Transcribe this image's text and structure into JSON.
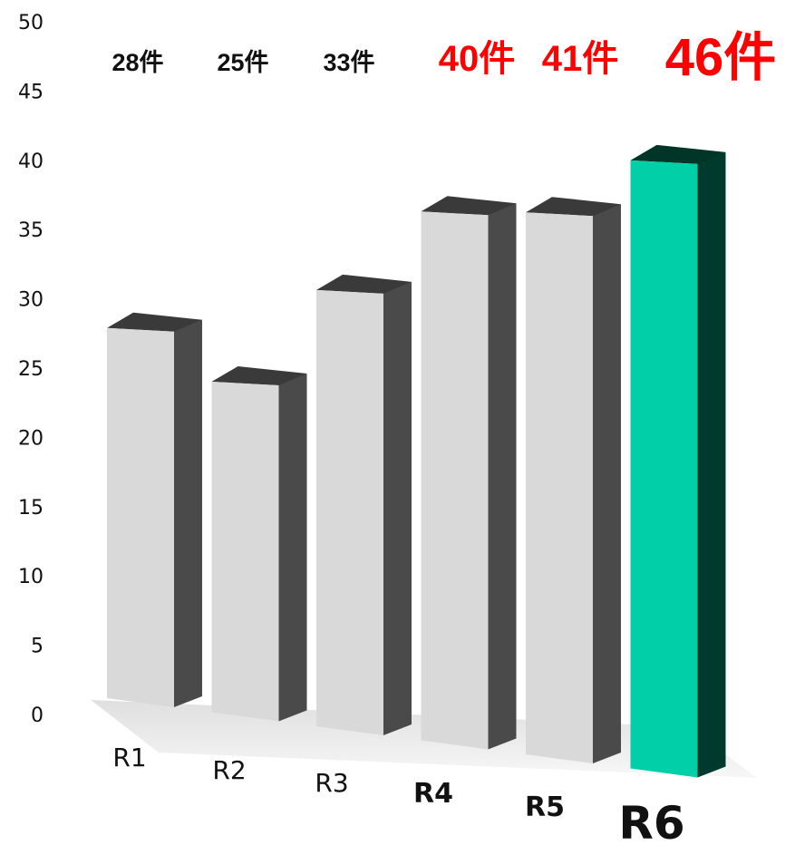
{
  "chart_data": {
    "type": "bar",
    "categories": [
      "R1",
      "R2",
      "R3",
      "R4",
      "R5",
      "R6"
    ],
    "values": [
      28,
      25,
      33,
      40,
      41,
      46
    ],
    "value_labels": [
      "28件",
      "25件",
      "33件",
      "40件",
      "41件",
      "46件"
    ],
    "ylim": [
      0,
      50
    ],
    "yticks": [
      "0",
      "5",
      "10",
      "15",
      "20",
      "25",
      "30",
      "35",
      "40",
      "45",
      "50"
    ],
    "grid": false,
    "legend": "none",
    "style": "3d",
    "colors": {
      "bar_default": "#d9d9d9",
      "bar_side_default": "#4a4a4a",
      "bar_top_default": "#3a3a3a",
      "bar_highlight": "#00cfa8",
      "bar_side_highlight": "#003a2c",
      "bar_top_highlight": "#003528",
      "label_default": "#111111",
      "label_highlight": "#ff0000"
    },
    "highlight_labels": [
      false,
      false,
      false,
      true,
      true,
      true
    ],
    "highlight_bar": [
      false,
      false,
      false,
      false,
      false,
      true
    ]
  }
}
